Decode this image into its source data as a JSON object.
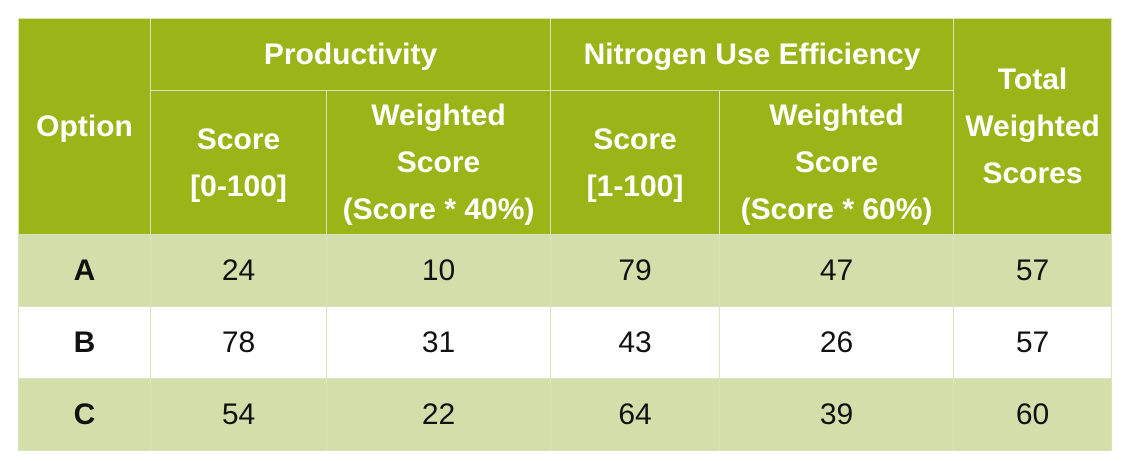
{
  "table": {
    "header": {
      "option": "Option",
      "productivity": "Productivity",
      "nue": "Nitrogen Use Efficiency",
      "total_lines": [
        "Total",
        "Weighted",
        "Scores"
      ],
      "prod_score_lines": [
        "Score",
        "[0-100]"
      ],
      "prod_weighted_lines": [
        "Weighted",
        "Score",
        "(Score * 40%)"
      ],
      "nue_score_lines": [
        "Score",
        "[1-100]"
      ],
      "nue_weighted_lines": [
        "Weighted",
        "Score",
        "(Score * 60%)"
      ]
    },
    "rows": [
      {
        "option": "A",
        "prod_score": "24",
        "prod_weighted": "10",
        "nue_score": "79",
        "nue_weighted": "47",
        "total": "57"
      },
      {
        "option": "B",
        "prod_score": "78",
        "prod_weighted": "31",
        "nue_score": "43",
        "nue_weighted": "26",
        "total": "57"
      },
      {
        "option": "C",
        "prod_score": "54",
        "prod_weighted": "22",
        "nue_score": "64",
        "nue_weighted": "39",
        "total": "60"
      }
    ]
  },
  "colors": {
    "header_background": "#9bb418",
    "header_text": "#ffffff",
    "shaded_row": "#d3deaa",
    "plain_row": "#ffffff",
    "border": "#d9e3bd"
  }
}
